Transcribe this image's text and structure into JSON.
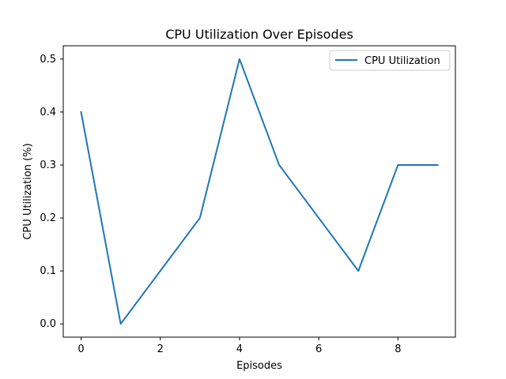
{
  "chart_data": {
    "type": "line",
    "title": "CPU Utilization Over Episodes",
    "xlabel": "Episodes",
    "ylabel": "CPU Utilization (%)",
    "xlim": [
      -0.45,
      9.45
    ],
    "ylim": [
      -0.025,
      0.525
    ],
    "x_ticks": [
      0,
      2,
      4,
      6,
      8
    ],
    "x_tick_labels": [
      "0",
      "2",
      "4",
      "6",
      "8"
    ],
    "y_ticks": [
      0.0,
      0.1,
      0.2,
      0.3,
      0.4,
      0.5
    ],
    "y_tick_labels": [
      "0.0",
      "0.1",
      "0.2",
      "0.3",
      "0.4",
      "0.5"
    ],
    "grid": false,
    "legend_position": "top-right",
    "series": [
      {
        "name": "CPU Utilization",
        "color": "#1f77b4",
        "x": [
          0,
          1,
          2,
          3,
          4,
          5,
          6,
          7,
          8,
          9
        ],
        "y": [
          0.4,
          0.0,
          0.1,
          0.2,
          0.5,
          0.3,
          0.2,
          0.1,
          0.3,
          0.3
        ]
      }
    ]
  }
}
